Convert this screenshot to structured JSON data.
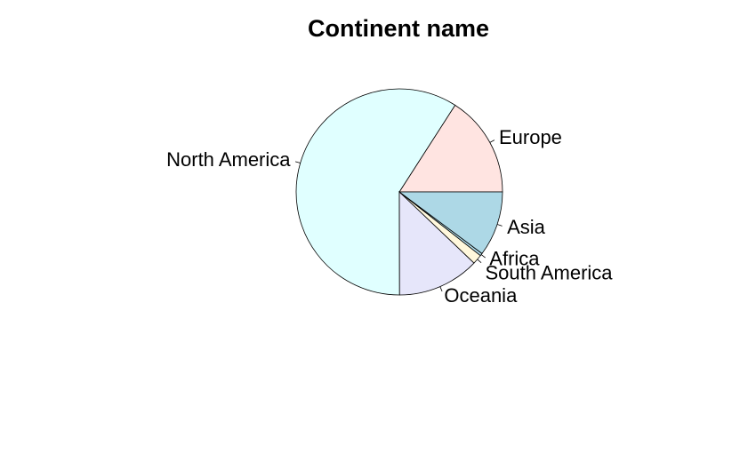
{
  "chart_data": {
    "type": "pie",
    "title": "Continent name",
    "start_angle_deg": 0,
    "direction": "counterclockwise",
    "slices": [
      {
        "label": "Europe",
        "value": 0.1638,
        "color": "#FFE4E1"
      },
      {
        "label": "North America",
        "value": 0.6083,
        "color": "#E0FFFF"
      },
      {
        "label": "Oceania",
        "value": 0.1322,
        "color": "#E6E6FA"
      },
      {
        "label": "South America",
        "value": 0.0156,
        "color": "#FFF8DC"
      },
      {
        "label": "Africa",
        "value": 0.0041,
        "color": "#ADD8E6"
      },
      {
        "label": "Asia",
        "value": 0.105,
        "color": "#ADD8E6"
      }
    ]
  }
}
